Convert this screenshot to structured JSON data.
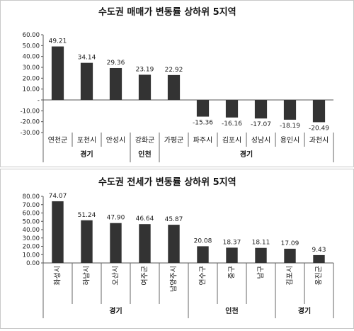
{
  "chart_data": [
    {
      "type": "bar",
      "title": "수도권 매매가 변동률 상하위 5지역",
      "categories": [
        "연천군",
        "포천시",
        "안성시",
        "강화군",
        "가평군",
        "파주시",
        "김포시",
        "성남시",
        "용인시",
        "과천시"
      ],
      "values": [
        49.21,
        34.14,
        29.36,
        23.19,
        22.92,
        -15.36,
        -16.16,
        -17.07,
        -18.19,
        -20.49
      ],
      "value_labels": [
        "49.21",
        "34.14",
        "29.36",
        "23.19",
        "22.92",
        "-15.36",
        "-16.16",
        "-17.07",
        "-18.19",
        "-20.49"
      ],
      "yticks": [
        "60.00",
        "50.00",
        "40.00",
        "30.00",
        "20.00",
        "10.00",
        "-",
        "-10.00",
        "-20.00",
        "-30.00"
      ],
      "ylim": [
        -30,
        60
      ],
      "groups": [
        {
          "label": "경기",
          "start": 0,
          "end": 2
        },
        {
          "label": "인천",
          "start": 3,
          "end": 3
        },
        {
          "label": "경기",
          "start": 4,
          "end": 9
        }
      ],
      "bar_color": "#333333"
    },
    {
      "type": "bar",
      "title": "수도권 전세가 변동률 상하위 5지역",
      "categories": [
        "화성시",
        "하남시",
        "오산시",
        "여주군",
        "남양주시",
        "연수구",
        "중구",
        "남구",
        "김포시",
        "옹진군"
      ],
      "values": [
        74.07,
        51.24,
        47.9,
        46.64,
        45.87,
        20.08,
        18.37,
        18.11,
        17.09,
        9.43
      ],
      "value_labels": [
        "74.07",
        "51.24",
        "47.90",
        "46.64",
        "45.87",
        "20.08",
        "18.37",
        "18.11",
        "17.09",
        "9.43"
      ],
      "yticks": [
        "80.00",
        "70.00",
        "60.00",
        "50.00",
        "40.00",
        "30.00",
        "20.00",
        "10.00",
        "0.00"
      ],
      "ylim": [
        0,
        80
      ],
      "groups": [
        {
          "label": "경기",
          "start": 0,
          "end": 4
        },
        {
          "label": "인천",
          "start": 5,
          "end": 7
        },
        {
          "label": "경기",
          "start": 8,
          "end": 9
        }
      ],
      "bar_color": "#333333"
    }
  ]
}
